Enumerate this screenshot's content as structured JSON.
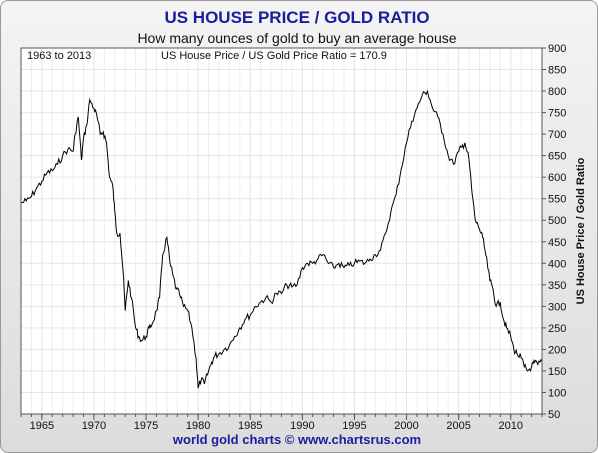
{
  "chart_data": {
    "type": "line",
    "title": "US HOUSE PRICE / GOLD RATIO",
    "subtitle": "How many ounces of gold to buy an average house",
    "annotation_left": "1963 to 2013",
    "annotation_center": "US House Price / US Gold Price Ratio = 170.9",
    "ylabel": "US House Price / Gold Ratio",
    "footer": "world gold charts © www.chartsrus.com",
    "ylim": [
      50,
      900
    ],
    "xlim": [
      1963,
      2013
    ],
    "y_ticks": [
      "50",
      "100",
      "150",
      "200",
      "250",
      "300",
      "350",
      "400",
      "450",
      "500",
      "550",
      "600",
      "650",
      "700",
      "750",
      "800",
      "850",
      "900"
    ],
    "x_ticks": [
      "1965",
      "1970",
      "1975",
      "1980",
      "1985",
      "1990",
      "1995",
      "2000",
      "2005",
      "2010"
    ],
    "grid": true,
    "colors": {
      "title": "#1c1c9c",
      "line": "#000000",
      "grid": "#e6e6e6",
      "plot_bg": "#ffffff"
    },
    "series": [
      {
        "x": [
          1963.0,
          1963.5,
          1964.0,
          1964.5,
          1965.0,
          1965.5,
          1966.0,
          1966.5,
          1967.0,
          1967.5,
          1968.0,
          1968.2,
          1968.5,
          1968.8,
          1969.0,
          1969.3,
          1969.6,
          1970.0,
          1970.3,
          1970.6,
          1970.9,
          1971.2,
          1971.5,
          1971.8,
          1972.0,
          1972.2,
          1972.5,
          1972.8,
          1973.0,
          1973.3,
          1973.6,
          1974.0,
          1974.3,
          1974.6,
          1975.0,
          1975.3,
          1975.6,
          1976.0,
          1976.3,
          1976.6,
          1977.0,
          1977.3,
          1977.6,
          1977.9,
          1978.2,
          1978.6,
          1979.0,
          1979.4,
          1979.8,
          1980.0,
          1980.3,
          1980.6,
          1981.0,
          1981.3,
          1981.6,
          1982.0,
          1982.5,
          1983.0,
          1983.5,
          1984.0,
          1984.5,
          1985.0,
          1985.5,
          1986.0,
          1986.5,
          1987.0,
          1987.5,
          1988.0,
          1988.5,
          1989.0,
          1989.5,
          1990.0,
          1990.5,
          1991.0,
          1991.5,
          1992.0,
          1992.5,
          1993.0,
          1993.5,
          1994.0,
          1994.5,
          1995.0,
          1995.5,
          1996.0,
          1996.5,
          1997.0,
          1997.5,
          1998.0,
          1998.5,
          1999.0,
          1999.5,
          2000.0,
          2000.5,
          2001.0,
          2001.5,
          2002.0,
          2002.5,
          2003.0,
          2003.5,
          2004.0,
          2004.5,
          2005.0,
          2005.3,
          2005.6,
          2006.0,
          2006.3,
          2006.6,
          2007.0,
          2007.3,
          2007.6,
          2008.0,
          2008.3,
          2008.6,
          2009.0,
          2009.3,
          2009.6,
          2010.0,
          2010.3,
          2010.6,
          2011.0,
          2011.3,
          2011.6,
          2012.0,
          2012.3,
          2012.6,
          2013.0
        ],
        "values": [
          540,
          545,
          555,
          575,
          590,
          610,
          615,
          630,
          650,
          665,
          660,
          700,
          740,
          640,
          690,
          720,
          780,
          760,
          740,
          700,
          705,
          680,
          600,
          580,
          520,
          470,
          470,
          380,
          290,
          360,
          320,
          250,
          230,
          220,
          230,
          250,
          260,
          290,
          320,
          420,
          460,
          400,
          370,
          340,
          330,
          300,
          290,
          250,
          180,
          110,
          130,
          120,
          150,
          170,
          185,
          190,
          200,
          210,
          230,
          250,
          270,
          280,
          300,
          310,
          320,
          310,
          330,
          330,
          350,
          345,
          350,
          390,
          400,
          400,
          410,
          420,
          400,
          390,
          400,
          390,
          395,
          400,
          405,
          400,
          410,
          420,
          430,
          470,
          520,
          560,
          620,
          680,
          730,
          760,
          790,
          800,
          760,
          740,
          700,
          650,
          630,
          660,
          670,
          680,
          640,
          560,
          500,
          480,
          460,
          420,
          360,
          340,
          300,
          310,
          270,
          250,
          230,
          200,
          190,
          180,
          160,
          150,
          160,
          170,
          165,
          170.9
        ]
      }
    ]
  }
}
